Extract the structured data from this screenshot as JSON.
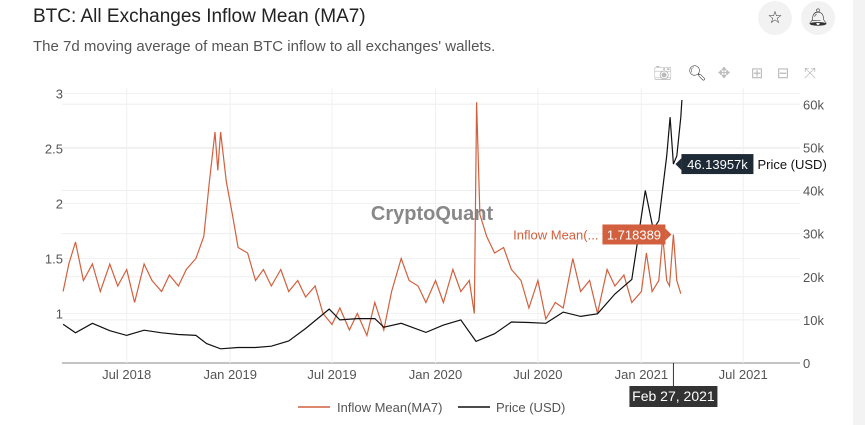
{
  "header": {
    "title": "BTC: All Exchanges Inflow Mean (MA7)",
    "subtitle": "The 7d moving average of mean BTC inflow to all exchanges' wallets.",
    "star_icon": "star-icon",
    "bell_icon": "bell-icon"
  },
  "toolbar": [
    "camera-icon",
    "zoom-icon",
    "pan-icon",
    "zoom-in-icon",
    "zoom-out-icon",
    "autoscale-icon"
  ],
  "watermark": "CryptoQuant",
  "hover": {
    "date": "Feb 27, 2021",
    "price_value": "46.13957k",
    "price_label": "Price (USD)",
    "inflow_value": "1.718389",
    "inflow_label": "Inflow Mean(..."
  },
  "chart_data": {
    "type": "line",
    "title": "",
    "xlim": [
      "2018-03-08",
      "2021-10-10"
    ],
    "x_ticks": [
      "Jul 2018",
      "Jan 2019",
      "Jul 2019",
      "Jan 2020",
      "Jul 2020",
      "Jan 2021",
      "Jul 2021"
    ],
    "y_left": {
      "ticks": [
        "1",
        "1.5",
        "2",
        "2.5",
        "3"
      ],
      "range": [
        0.55,
        3.05
      ]
    },
    "y_right": {
      "ticks": [
        "0",
        "10k",
        "20k",
        "30k",
        "40k",
        "50k",
        "60k"
      ],
      "range": [
        0,
        61000
      ]
    },
    "grid": true,
    "legend_position": "bottom",
    "colors": {
      "inflow": "#d2603e",
      "price": "#111111"
    },
    "series": [
      {
        "name": "Inflow Mean(MA7)",
        "axis": "left",
        "points": [
          [
            "2018-03-10",
            1.2
          ],
          [
            "2018-03-20",
            1.45
          ],
          [
            "2018-04-01",
            1.65
          ],
          [
            "2018-04-15",
            1.3
          ],
          [
            "2018-05-01",
            1.45
          ],
          [
            "2018-05-15",
            1.2
          ],
          [
            "2018-06-01",
            1.45
          ],
          [
            "2018-06-15",
            1.25
          ],
          [
            "2018-07-01",
            1.4
          ],
          [
            "2018-07-15",
            1.1
          ],
          [
            "2018-08-01",
            1.45
          ],
          [
            "2018-08-15",
            1.3
          ],
          [
            "2018-09-01",
            1.2
          ],
          [
            "2018-09-15",
            1.35
          ],
          [
            "2018-10-01",
            1.25
          ],
          [
            "2018-10-15",
            1.4
          ],
          [
            "2018-11-01",
            1.5
          ],
          [
            "2018-11-15",
            1.7
          ],
          [
            "2018-11-25",
            2.2
          ],
          [
            "2018-12-05",
            2.65
          ],
          [
            "2018-12-10",
            2.3
          ],
          [
            "2018-12-15",
            2.65
          ],
          [
            "2018-12-25",
            2.2
          ],
          [
            "2019-01-05",
            1.9
          ],
          [
            "2019-01-15",
            1.6
          ],
          [
            "2019-02-01",
            1.55
          ],
          [
            "2019-02-15",
            1.3
          ],
          [
            "2019-03-01",
            1.4
          ],
          [
            "2019-03-15",
            1.25
          ],
          [
            "2019-04-01",
            1.4
          ],
          [
            "2019-04-15",
            1.2
          ],
          [
            "2019-05-01",
            1.3
          ],
          [
            "2019-05-15",
            1.15
          ],
          [
            "2019-06-01",
            1.25
          ],
          [
            "2019-06-15",
            1.0
          ],
          [
            "2019-07-01",
            0.9
          ],
          [
            "2019-07-15",
            1.05
          ],
          [
            "2019-08-01",
            0.85
          ],
          [
            "2019-08-15",
            1.0
          ],
          [
            "2019-09-01",
            0.8
          ],
          [
            "2019-09-15",
            1.1
          ],
          [
            "2019-10-01",
            0.85
          ],
          [
            "2019-10-15",
            1.2
          ],
          [
            "2019-11-01",
            1.5
          ],
          [
            "2019-11-15",
            1.3
          ],
          [
            "2019-12-01",
            1.25
          ],
          [
            "2019-12-15",
            1.1
          ],
          [
            "2020-01-01",
            1.3
          ],
          [
            "2020-01-15",
            1.1
          ],
          [
            "2020-02-01",
            1.4
          ],
          [
            "2020-02-15",
            1.2
          ],
          [
            "2020-03-01",
            1.3
          ],
          [
            "2020-03-10",
            1.0
          ],
          [
            "2020-03-14",
            2.92
          ],
          [
            "2020-03-20",
            1.9
          ],
          [
            "2020-04-01",
            1.7
          ],
          [
            "2020-04-15",
            1.55
          ],
          [
            "2020-05-01",
            1.6
          ],
          [
            "2020-05-15",
            1.4
          ],
          [
            "2020-06-01",
            1.3
          ],
          [
            "2020-06-15",
            1.05
          ],
          [
            "2020-07-01",
            1.3
          ],
          [
            "2020-07-15",
            0.95
          ],
          [
            "2020-08-01",
            1.1
          ],
          [
            "2020-08-15",
            1.05
          ],
          [
            "2020-09-01",
            1.5
          ],
          [
            "2020-09-15",
            1.2
          ],
          [
            "2020-10-01",
            1.3
          ],
          [
            "2020-10-15",
            1.0
          ],
          [
            "2020-11-01",
            1.4
          ],
          [
            "2020-11-15",
            1.25
          ],
          [
            "2020-12-01",
            1.35
          ],
          [
            "2020-12-15",
            1.1
          ],
          [
            "2021-01-01",
            1.2
          ],
          [
            "2021-01-10",
            1.55
          ],
          [
            "2021-01-20",
            1.2
          ],
          [
            "2021-02-01",
            1.3
          ],
          [
            "2021-02-08",
            1.7
          ],
          [
            "2021-02-15",
            1.3
          ],
          [
            "2021-02-20",
            1.25
          ],
          [
            "2021-02-27",
            1.718389
          ],
          [
            "2021-03-05",
            1.3
          ],
          [
            "2021-03-12",
            1.18
          ]
        ]
      },
      {
        "name": "Price (USD)",
        "axis": "right",
        "points": [
          [
            "2018-03-10",
            9000
          ],
          [
            "2018-04-01",
            7000
          ],
          [
            "2018-05-01",
            9200
          ],
          [
            "2018-06-01",
            7500
          ],
          [
            "2018-07-01",
            6400
          ],
          [
            "2018-08-01",
            7600
          ],
          [
            "2018-09-01",
            7000
          ],
          [
            "2018-10-01",
            6600
          ],
          [
            "2018-11-01",
            6400
          ],
          [
            "2018-11-20",
            4500
          ],
          [
            "2018-12-15",
            3300
          ],
          [
            "2019-01-15",
            3600
          ],
          [
            "2019-02-15",
            3600
          ],
          [
            "2019-03-15",
            3900
          ],
          [
            "2019-04-15",
            5100
          ],
          [
            "2019-05-15",
            8000
          ],
          [
            "2019-06-26",
            12500
          ],
          [
            "2019-07-15",
            10000
          ],
          [
            "2019-08-15",
            10300
          ],
          [
            "2019-09-15",
            10300
          ],
          [
            "2019-10-01",
            8300
          ],
          [
            "2019-11-01",
            9200
          ],
          [
            "2019-12-15",
            7100
          ],
          [
            "2020-01-15",
            8800
          ],
          [
            "2020-02-15",
            10000
          ],
          [
            "2020-03-13",
            5000
          ],
          [
            "2020-04-15",
            6800
          ],
          [
            "2020-05-15",
            9500
          ],
          [
            "2020-06-15",
            9400
          ],
          [
            "2020-07-15",
            9200
          ],
          [
            "2020-08-15",
            11800
          ],
          [
            "2020-09-15",
            10800
          ],
          [
            "2020-10-15",
            11400
          ],
          [
            "2020-11-15",
            16000
          ],
          [
            "2020-12-15",
            19400
          ],
          [
            "2021-01-08",
            40000
          ],
          [
            "2021-01-22",
            31000
          ],
          [
            "2021-02-01",
            33000
          ],
          [
            "2021-02-15",
            48000
          ],
          [
            "2021-02-21",
            57000
          ],
          [
            "2021-02-27",
            46139.57
          ],
          [
            "2021-03-05",
            48000
          ],
          [
            "2021-03-12",
            57000
          ],
          [
            "2021-03-14",
            61000
          ]
        ]
      }
    ]
  }
}
